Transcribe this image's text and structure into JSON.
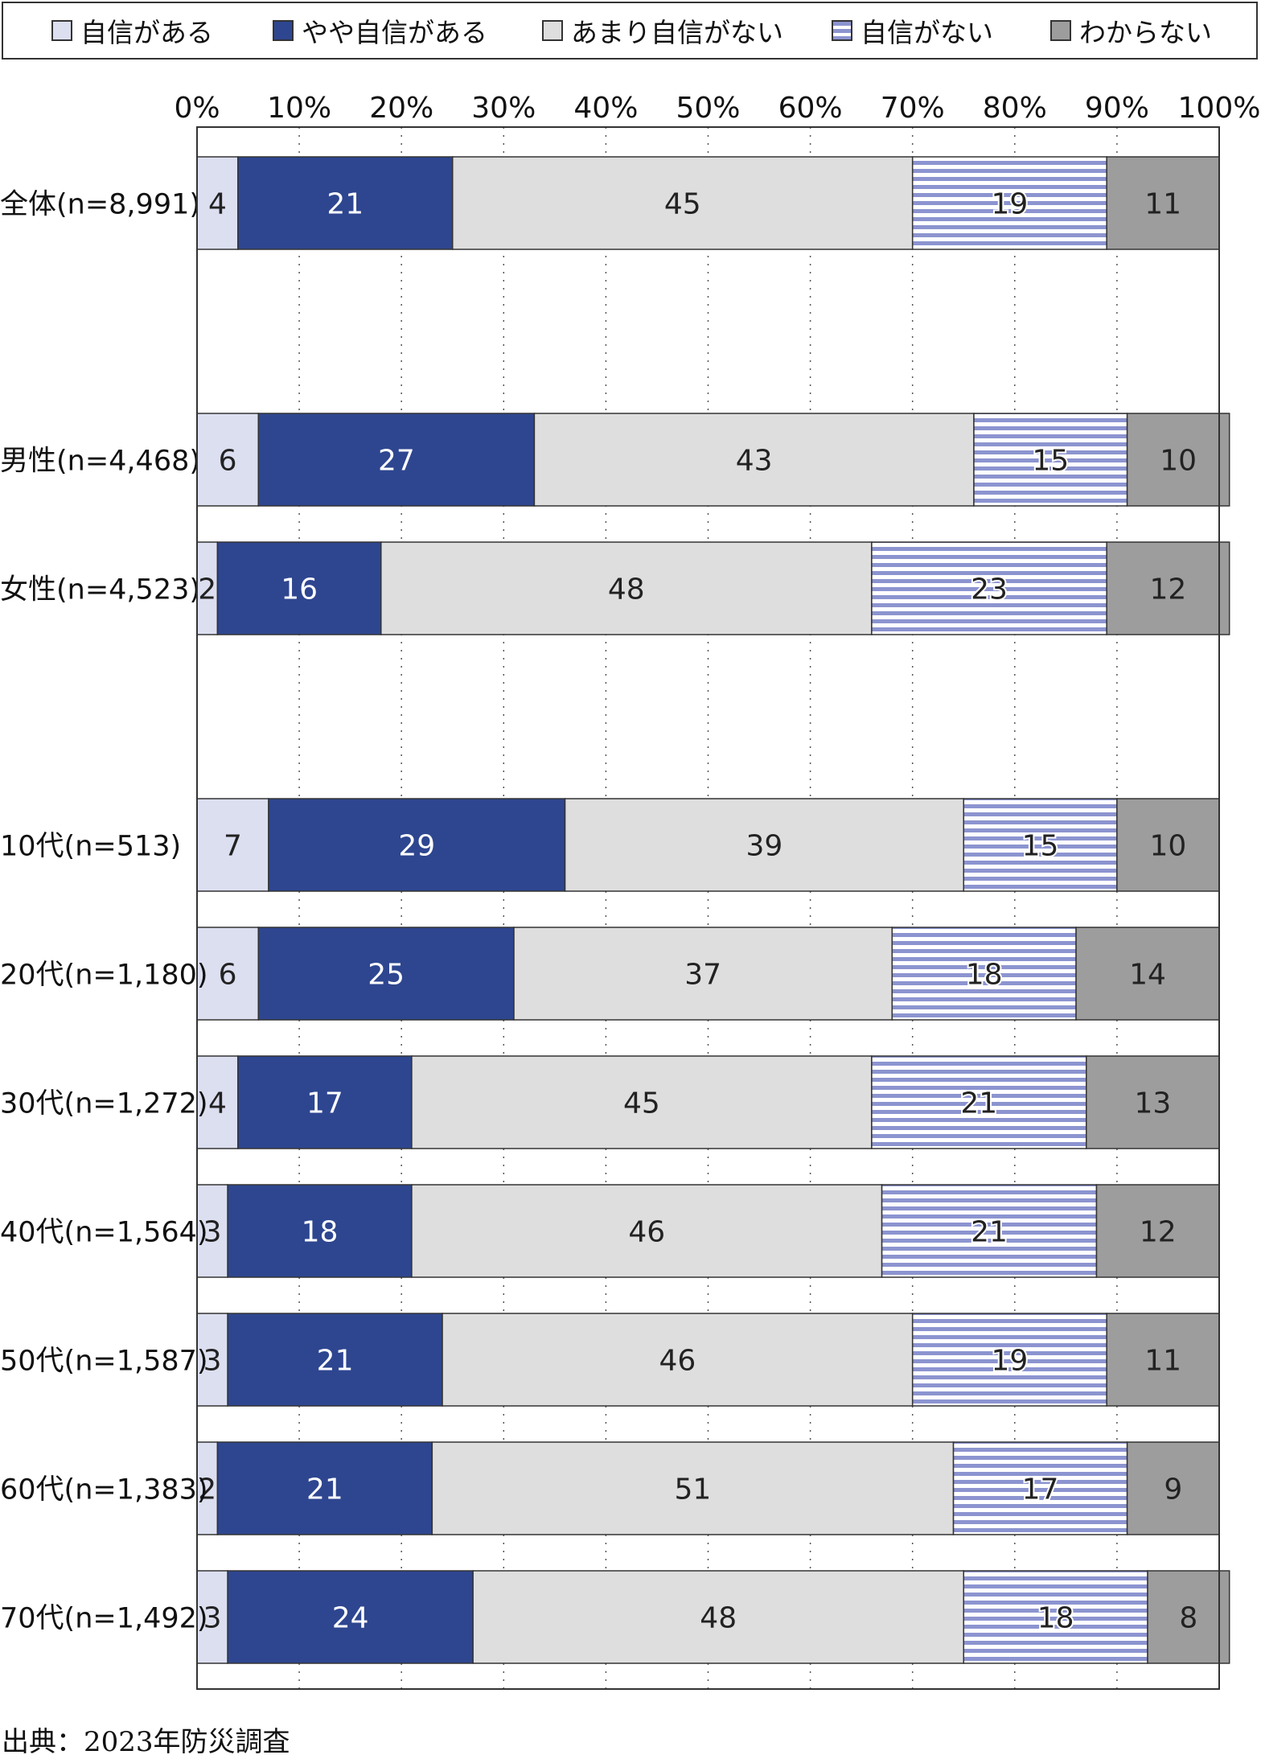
{
  "legend": {
    "items": [
      {
        "label": "自信がある",
        "color": "#dcdff0",
        "pattern": "none"
      },
      {
        "label": "やや自信がある",
        "color": "#2e4690",
        "pattern": "none"
      },
      {
        "label": "あまり自信がない",
        "color": "#dedede",
        "pattern": "none"
      },
      {
        "label": "自信がない",
        "color": "#8c94d0",
        "pattern": "horizontal-stripes"
      },
      {
        "label": "わからない",
        "color": "#9d9d9d",
        "pattern": "none"
      }
    ]
  },
  "chart_data": {
    "type": "bar",
    "orientation": "horizontal",
    "stacked": true,
    "xlim": [
      0,
      100
    ],
    "x_ticks": [
      "0%",
      "10%",
      "20%",
      "30%",
      "40%",
      "50%",
      "60%",
      "70%",
      "80%",
      "90%",
      "100%"
    ],
    "grid": "vertical dotted",
    "legend_position": "top",
    "series_names": [
      "自信がある",
      "やや自信がある",
      "あまり自信がない",
      "自信がない",
      "わからない"
    ],
    "categories": [
      {
        "label": "全体(n=8,991)",
        "values": [
          4,
          21,
          45,
          19,
          11
        ]
      },
      {
        "label": "男性(n=4,468)",
        "values": [
          6,
          27,
          43,
          15,
          10
        ]
      },
      {
        "label": "女性(n=4,523)",
        "values": [
          2,
          16,
          48,
          23,
          12
        ]
      },
      {
        "label": "10代(n=513)",
        "values": [
          7,
          29,
          39,
          15,
          10
        ]
      },
      {
        "label": "20代(n=1,180)",
        "values": [
          6,
          25,
          37,
          18,
          14
        ]
      },
      {
        "label": "30代(n=1,272)",
        "values": [
          4,
          17,
          45,
          21,
          13
        ]
      },
      {
        "label": "40代(n=1,564)",
        "values": [
          3,
          18,
          46,
          21,
          12
        ]
      },
      {
        "label": "50代(n=1,587)",
        "values": [
          3,
          21,
          46,
          19,
          11
        ]
      },
      {
        "label": "60代(n=1,383)",
        "values": [
          2,
          21,
          51,
          17,
          9
        ]
      },
      {
        "label": "70代(n=1,492)",
        "values": [
          3,
          24,
          48,
          18,
          8
        ]
      }
    ]
  },
  "source": "出典：2023年防災調査"
}
